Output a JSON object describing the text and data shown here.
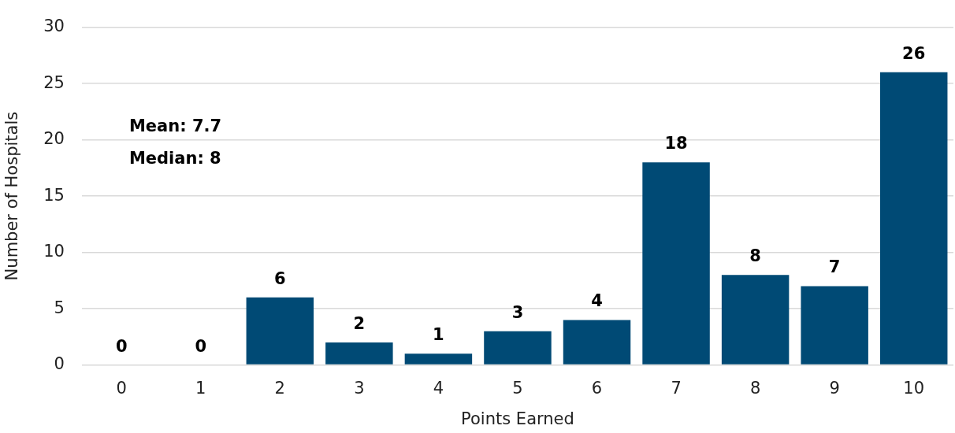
{
  "chart_data": {
    "type": "bar",
    "xlabel": "Points Earned",
    "ylabel": "Number of Hospitals",
    "categories": [
      "0",
      "1",
      "2",
      "3",
      "4",
      "5",
      "6",
      "7",
      "8",
      "9",
      "10"
    ],
    "values": [
      0,
      0,
      6,
      2,
      1,
      3,
      4,
      18,
      8,
      7,
      26
    ],
    "color": "#004a75",
    "ylim": [
      0,
      30
    ],
    "yticks": [
      0,
      5,
      10,
      15,
      20,
      25,
      30
    ],
    "grid": "y",
    "data_labels": true,
    "legend": false,
    "annotations": [
      "Mean: 7.7",
      "Median: 8"
    ]
  }
}
